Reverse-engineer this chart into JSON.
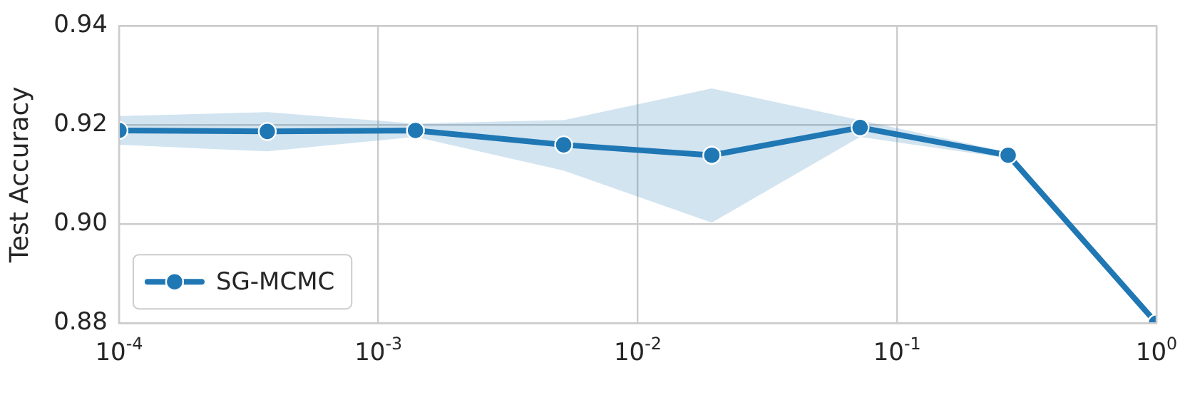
{
  "chart_data": {
    "type": "line",
    "ylabel": "Test Accuracy",
    "x": [
      0.0001,
      0.000373,
      0.00139,
      0.00518,
      0.0193,
      0.072,
      0.268,
      1
    ],
    "xlim": [
      0.0001,
      1
    ],
    "xticks": [
      {
        "value": 0.0001,
        "label": "10$^{-4}$"
      },
      {
        "value": 0.001,
        "label": "10$^{-3}$"
      },
      {
        "value": 0.01,
        "label": "10$^{-2}$"
      },
      {
        "value": 0.1,
        "label": "10$^{-1}$"
      },
      {
        "value": 1,
        "label": "10$^{0}$"
      }
    ],
    "ylim": [
      0.88,
      0.94
    ],
    "yticks": [
      0.88,
      {
        "value": 0.9,
        "label": "0.90"
      },
      0.92,
      0.94
    ],
    "log": "x",
    "grid": true,
    "legend": "bottom left",
    "marker": "circle",
    "line_style": "solid",
    "series": [
      {
        "name": "SG-MCMC",
        "color": "#1f77b4",
        "values": [
          0.9189,
          0.9187,
          0.9189,
          0.916,
          0.9139,
          0.9195,
          0.9139,
          0.88
        ],
        "lower": [
          0.916,
          0.9147,
          0.9176,
          0.9108,
          0.9003,
          0.9176,
          0.9133,
          0.88
        ],
        "upper": [
          0.9218,
          0.9226,
          0.9203,
          0.921,
          0.9274,
          0.921,
          0.9145,
          0.88
        ]
      }
    ]
  }
}
